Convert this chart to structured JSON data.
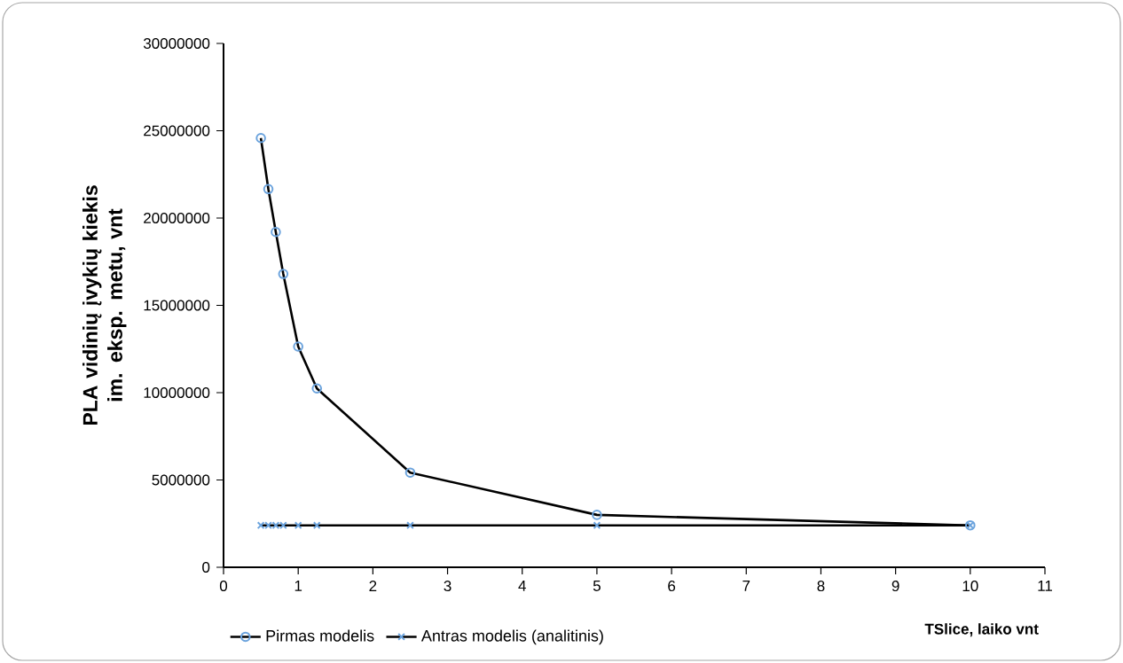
{
  "chart_data": {
    "type": "line",
    "xlabel": "TSlice, laiko vnt",
    "ylabel": "PLA vidinių įvykių kiekis im. eksp. metu, vnt",
    "xlim": [
      0,
      11
    ],
    "xticks": [
      0,
      1,
      2,
      3,
      4,
      5,
      6,
      7,
      8,
      9,
      10,
      11
    ],
    "ylim": [
      0,
      30000000
    ],
    "yticks": [
      0,
      5000000,
      10000000,
      15000000,
      20000000,
      25000000,
      30000000
    ],
    "x": [
      0.5,
      0.6,
      0.7,
      0.8,
      1,
      1.25,
      2.5,
      5,
      10
    ],
    "series": [
      {
        "name": "Pirmas modelis",
        "color": "#000000",
        "marker": "circle",
        "values": [
          24580000,
          21660000,
          19200000,
          16800000,
          12640000,
          10240000,
          5420000,
          3000000,
          2400000
        ]
      },
      {
        "name": "Antras modelis (analitinis)",
        "color": "#000000",
        "marker": "cross",
        "values": [
          2400000,
          2400000,
          2400000,
          2400000,
          2400000,
          2400000,
          2400000,
          2400000,
          2400000
        ]
      }
    ],
    "grid": false,
    "legend": "bottom",
    "line_style": "solid"
  }
}
